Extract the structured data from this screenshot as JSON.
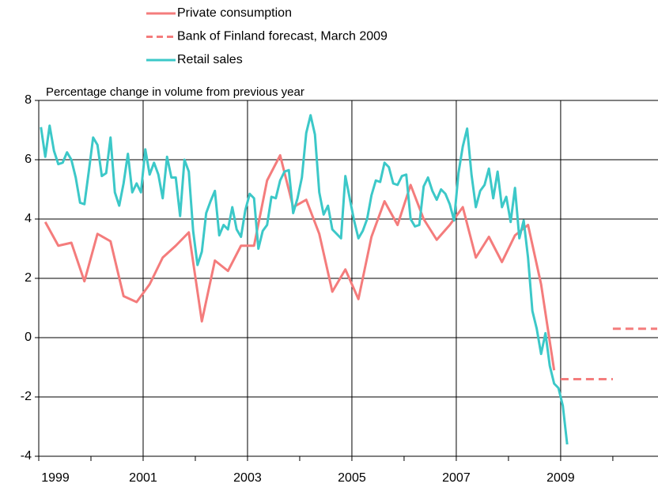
{
  "chart_data": {
    "type": "line",
    "title": "Percentage change in volume from previous year",
    "xlim": [
      1999,
      2010.85
    ],
    "xticks": [
      1999,
      2001,
      2003,
      2005,
      2007,
      2009
    ],
    "ylim": [
      -4,
      8
    ],
    "yticks": [
      -4,
      -2,
      0,
      2,
      4,
      6,
      8
    ],
    "grid": true,
    "legend": "top",
    "series": [
      {
        "name": "Private consumption",
        "color": "#f47c7c",
        "style": "solid",
        "x": [
          1999.125,
          1999.375,
          1999.625,
          1999.875,
          2000.125,
          2000.375,
          2000.625,
          2000.875,
          2001.125,
          2001.375,
          2001.625,
          2001.875,
          2002.125,
          2002.375,
          2002.625,
          2002.875,
          2003.125,
          2003.375,
          2003.625,
          2003.875,
          2004.125,
          2004.375,
          2004.625,
          2004.875,
          2005.125,
          2005.375,
          2005.625,
          2005.875,
          2006.125,
          2006.375,
          2006.625,
          2006.875,
          2007.125,
          2007.375,
          2007.625,
          2007.875,
          2008.125,
          2008.375,
          2008.625,
          2008.875
        ],
        "values": [
          3.9,
          3.1,
          3.2,
          1.9,
          3.5,
          3.25,
          1.4,
          1.2,
          1.8,
          2.7,
          3.1,
          3.55,
          0.55,
          2.6,
          2.25,
          3.1,
          3.1,
          5.3,
          6.15,
          4.4,
          4.65,
          3.5,
          1.55,
          2.3,
          1.3,
          3.4,
          4.6,
          3.8,
          5.15,
          4.0,
          3.3,
          3.8,
          4.4,
          2.7,
          3.4,
          2.55,
          3.45,
          3.8,
          1.8,
          -1.1
        ]
      },
      {
        "name": "Bank of Finland forecast, March 2009",
        "color": "#f47c7c",
        "style": "dashed",
        "step": true,
        "x": [
          2009,
          2010
        ],
        "values": [
          -1.4,
          0.3
        ]
      },
      {
        "name": "Retail sales",
        "color": "#3cc8c8",
        "style": "solid",
        "x": [
          1999.0417,
          1999.125,
          1999.2083,
          1999.2917,
          1999.375,
          1999.4583,
          1999.5417,
          1999.625,
          1999.7083,
          1999.7917,
          1999.875,
          1999.9583,
          2000.0417,
          2000.125,
          2000.2083,
          2000.2917,
          2000.375,
          2000.4583,
          2000.5417,
          2000.625,
          2000.7083,
          2000.7917,
          2000.875,
          2000.9583,
          2001.0417,
          2001.125,
          2001.2083,
          2001.2917,
          2001.375,
          2001.4583,
          2001.5417,
          2001.625,
          2001.7083,
          2001.7917,
          2001.875,
          2001.9583,
          2002.0417,
          2002.125,
          2002.2083,
          2002.2917,
          2002.375,
          2002.4583,
          2002.5417,
          2002.625,
          2002.7083,
          2002.7917,
          2002.875,
          2002.9583,
          2003.0417,
          2003.125,
          2003.2083,
          2003.2917,
          2003.375,
          2003.4583,
          2003.5417,
          2003.625,
          2003.7083,
          2003.7917,
          2003.875,
          2003.9583,
          2004.0417,
          2004.125,
          2004.2083,
          2004.2917,
          2004.375,
          2004.4583,
          2004.5417,
          2004.625,
          2004.7083,
          2004.7917,
          2004.875,
          2004.9583,
          2005.0417,
          2005.125,
          2005.2083,
          2005.2917,
          2005.375,
          2005.4583,
          2005.5417,
          2005.625,
          2005.7083,
          2005.7917,
          2005.875,
          2005.9583,
          2006.0417,
          2006.125,
          2006.2083,
          2006.2917,
          2006.375,
          2006.4583,
          2006.5417,
          2006.625,
          2006.7083,
          2006.7917,
          2006.875,
          2006.9583,
          2007.0417,
          2007.125,
          2007.2083,
          2007.2917,
          2007.375,
          2007.4583,
          2007.5417,
          2007.625,
          2007.7083,
          2007.7917,
          2007.875,
          2007.9583,
          2008.0417,
          2008.125,
          2008.2083,
          2008.2917,
          2008.375,
          2008.4583,
          2008.5417,
          2008.625,
          2008.7083,
          2008.7917,
          2008.875,
          2008.9583,
          2009.0417,
          2009.125
        ],
        "values": [
          7.1,
          6.1,
          7.15,
          6.3,
          5.85,
          5.9,
          6.25,
          6.0,
          5.4,
          4.55,
          4.5,
          5.6,
          6.75,
          6.5,
          5.45,
          5.55,
          6.75,
          4.9,
          4.45,
          5.2,
          6.2,
          4.9,
          5.2,
          4.9,
          6.35,
          5.5,
          5.9,
          5.5,
          4.7,
          6.1,
          5.4,
          5.4,
          4.1,
          6.0,
          5.6,
          3.6,
          2.45,
          2.9,
          4.2,
          4.6,
          4.95,
          3.45,
          3.8,
          3.65,
          4.4,
          3.65,
          3.4,
          4.3,
          4.85,
          4.7,
          3.0,
          3.6,
          3.8,
          4.75,
          4.7,
          5.3,
          5.6,
          5.65,
          4.2,
          4.7,
          5.4,
          6.9,
          7.5,
          6.85,
          4.9,
          4.15,
          4.45,
          3.65,
          3.5,
          3.35,
          5.45,
          4.7,
          3.95,
          3.35,
          3.6,
          4.0,
          4.8,
          5.3,
          5.25,
          5.9,
          5.75,
          5.2,
          5.15,
          5.45,
          5.5,
          4.0,
          3.75,
          3.8,
          5.1,
          5.4,
          4.95,
          4.65,
          5.0,
          4.85,
          4.5,
          3.95,
          5.55,
          6.45,
          7.05,
          5.5,
          4.4,
          4.95,
          5.15,
          5.7,
          4.7,
          5.6,
          4.4,
          4.75,
          3.9,
          5.05,
          3.35,
          3.95,
          2.7,
          0.9,
          0.3,
          -0.55,
          0.15,
          -0.95,
          -1.55,
          -1.7,
          -2.3,
          -3.6
        ]
      }
    ]
  }
}
